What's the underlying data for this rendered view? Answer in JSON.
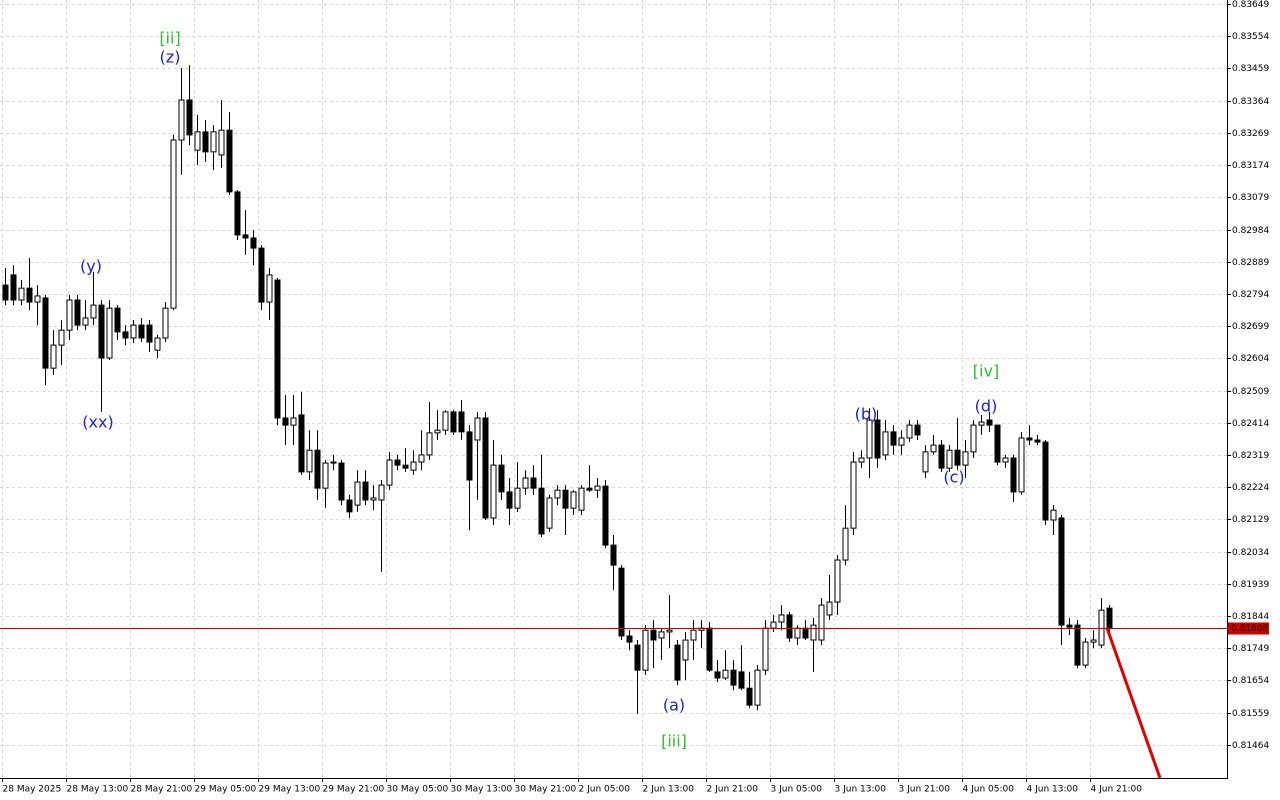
{
  "chart_data": {
    "type": "candlestick",
    "categories": [
      "28 May 2025",
      null,
      null,
      null,
      null,
      null,
      null,
      null,
      "28 May 13:00",
      null,
      null,
      null,
      null,
      null,
      null,
      null,
      "28 May 21:00",
      null,
      null,
      null,
      null,
      null,
      null,
      null,
      "29 May 05:00",
      null,
      null,
      null,
      null,
      null,
      null,
      null,
      "29 May 13:00",
      null,
      null,
      null,
      null,
      null,
      null,
      null,
      "29 May 21:00",
      null,
      null,
      null,
      null,
      null,
      null,
      null,
      "30 May 05:00",
      null,
      null,
      null,
      null,
      null,
      null,
      null,
      "30 May 13:00",
      null,
      null,
      null,
      null,
      null,
      null,
      null,
      "30 May 21:00",
      null,
      null,
      null,
      null,
      null,
      null,
      null,
      "2 Jun 05:00",
      null,
      null,
      null,
      null,
      null,
      null,
      null,
      "2 Jun 13:00",
      null,
      null,
      null,
      null,
      null,
      null,
      null,
      "2 Jun 21:00",
      null,
      null,
      null,
      null,
      null,
      null,
      null,
      "3 Jun 05:00",
      null,
      null,
      null,
      null,
      null,
      null,
      null,
      "3 Jun 13:00",
      null,
      null,
      null,
      null,
      null,
      null,
      null,
      "3 Jun 21:00",
      null,
      null,
      null,
      null,
      null,
      null,
      null,
      "4 Jun 05:00",
      null,
      null,
      null,
      null,
      null,
      null,
      null,
      "4 Jun 13:00",
      null,
      null,
      null,
      null,
      null,
      null,
      null,
      "4 Jun 21:00",
      null,
      null
    ],
    "open": [
      0.8282,
      0.8285,
      0.82776,
      0.82811,
      0.8277,
      0.82782,
      0.82575,
      0.82643,
      0.82687,
      0.82776,
      0.82702,
      0.82723,
      0.82761,
      0.82605,
      0.82752,
      0.82682,
      0.82664,
      0.82702,
      0.82702,
      0.82628,
      0.82664,
      0.82752,
      0.83248,
      0.83366,
      0.83218,
      0.83272,
      0.83213,
      0.83204,
      0.83277,
      0.83095,
      0.82968,
      0.82959,
      0.82929,
      0.8277,
      0.82835,
      0.82428,
      0.82407,
      0.82437,
      0.82269,
      0.82333,
      0.82221,
      0.82295,
      0.82295,
      0.82186,
      0.82171,
      0.82239,
      0.82186,
      0.82186,
      0.8223,
      0.82304,
      0.82289,
      0.82274,
      0.82298,
      0.82319,
      0.82384,
      0.82392,
      0.82446,
      0.82446,
      0.82387,
      0.82363,
      0.82428,
      0.82133,
      0.82289,
      0.8221,
      0.82162,
      0.82221,
      0.82251,
      0.82221,
      0.82103,
      0.82192,
      0.82215,
      0.82162,
      0.82156,
      0.82221,
      0.82215,
      0.82227,
      0.82053,
      0.81985,
      0.81785,
      0.81758,
      0.81684,
      0.81802,
      0.81779,
      0.81797,
      0.81758,
      0.81714,
      0.81773,
      0.81802,
      0.81808,
      0.81679,
      0.81661,
      0.81684,
      0.81679,
      0.81631,
      0.81581,
      0.81684,
      0.81808,
      0.81826,
      0.81847,
      0.81779,
      0.81808,
      0.81773,
      0.81773,
      0.81847,
      0.81885,
      0.82009,
      0.82103,
      0.82298,
      0.8231,
      0.82422,
      0.82319,
      0.82387,
      0.82348,
      0.82369,
      0.82407,
      0.82269,
      0.82328,
      0.82348,
      0.8228,
      0.82333,
      0.82289,
      0.82328,
      0.82407,
      0.82422,
      0.82407,
      0.82298,
      0.8231,
      0.8221,
      0.82369,
      0.82363,
      0.82357,
      0.82127,
      0.82133,
      0.81817,
      0.81817,
      0.81699,
      0.81767,
      0.81758,
      0.81867
    ],
    "high": [
      0.8287,
      0.82879,
      0.82835,
      0.829,
      0.8282,
      0.82791,
      0.82687,
      0.82717,
      0.82791,
      0.82791,
      0.82776,
      0.82859,
      0.82776,
      0.82776,
      0.82761,
      0.82702,
      0.82717,
      0.82723,
      0.82717,
      0.82673,
      0.8277,
      0.83263,
      0.8346,
      0.83469,
      0.83322,
      0.83307,
      0.83292,
      0.83366,
      0.83331,
      0.831,
      0.83041,
      0.82982,
      0.82938,
      0.8287,
      0.82841,
      0.82496,
      0.82496,
      0.82505,
      0.82392,
      0.82392,
      0.82304,
      0.82319,
      0.82304,
      0.82201,
      0.82274,
      0.82274,
      0.8223,
      0.82245,
      0.82328,
      0.82319,
      0.82339,
      0.82333,
      0.82392,
      0.82475,
      0.82451,
      0.82451,
      0.82451,
      0.82481,
      0.82407,
      0.82446,
      0.82446,
      0.82363,
      0.82319,
      0.82251,
      0.82298,
      0.82274,
      0.82289,
      0.82319,
      0.82201,
      0.8223,
      0.8223,
      0.82215,
      0.8223,
      0.82289,
      0.82251,
      0.82245,
      0.82083,
      0.81994,
      0.81802,
      0.81773,
      0.81817,
      0.81832,
      0.81808,
      0.81906,
      0.81773,
      0.81797,
      0.81832,
      0.81832,
      0.81826,
      0.81714,
      0.81743,
      0.81714,
      0.81758,
      0.81679,
      0.81699,
      0.81832,
      0.81847,
      0.81876,
      0.81856,
      0.81817,
      0.81832,
      0.81838,
      0.81897,
      0.81965,
      0.82024,
      0.82171,
      0.82328,
      0.82333,
      0.82457,
      0.82451,
      0.82422,
      0.82407,
      0.82392,
      0.82422,
      0.82422,
      0.82348,
      0.82378,
      0.82363,
      0.82348,
      0.82428,
      0.82363,
      0.82422,
      0.82437,
      0.82446,
      0.82407,
      0.82319,
      0.82319,
      0.82387,
      0.82407,
      0.82378,
      0.82363,
      0.82171,
      0.82142,
      0.81838,
      0.81832,
      0.81779,
      0.81802,
      0.81897,
      0.81876
    ],
    "low": [
      0.82761,
      0.82761,
      0.82761,
      0.82746,
      0.82702,
      0.82525,
      0.82555,
      0.82584,
      0.82658,
      0.82687,
      0.82687,
      0.82702,
      0.82446,
      0.82599,
      0.82658,
      0.82643,
      0.82649,
      0.82652,
      0.82623,
      0.82605,
      0.82652,
      0.82746,
      0.83145,
      0.83233,
      0.83174,
      0.83183,
      0.83159,
      0.83165,
      0.83086,
      0.82953,
      0.82909,
      0.82879,
      0.82746,
      0.82717,
      0.82407,
      0.82348,
      0.82348,
      0.8226,
      0.82245,
      0.82186,
      0.82162,
      0.82274,
      0.82171,
      0.82133,
      0.82151,
      0.82171,
      0.82156,
      0.81974,
      0.82215,
      0.82274,
      0.82269,
      0.8226,
      0.82274,
      0.82304,
      0.82363,
      0.82378,
      0.82378,
      0.82363,
      0.82097,
      0.82186,
      0.82127,
      0.82112,
      0.82186,
      0.82112,
      0.82151,
      0.82201,
      0.82201,
      0.82077,
      0.82092,
      0.82171,
      0.82083,
      0.82142,
      0.82142,
      0.8221,
      0.82192,
      0.82044,
      0.8192,
      0.81773,
      0.81743,
      0.81555,
      0.8167,
      0.8169,
      0.81714,
      0.81749,
      0.8164,
      0.81655,
      0.81714,
      0.81749,
      0.81679,
      0.81649,
      0.81655,
      0.81625,
      0.81625,
      0.81572,
      0.81566,
      0.8167,
      0.81797,
      0.81802,
      0.81767,
      0.81758,
      0.81773,
      0.81679,
      0.81758,
      0.81832,
      0.81847,
      0.81994,
      0.82083,
      0.8228,
      0.82251,
      0.8228,
      0.82304,
      0.82319,
      0.82319,
      0.82357,
      0.82363,
      0.82251,
      0.82319,
      0.82269,
      0.82269,
      0.82274,
      0.82251,
      0.8231,
      0.82378,
      0.82387,
      0.82289,
      0.8228,
      0.8218,
      0.82201,
      0.82348,
      0.82348,
      0.82112,
      0.82083,
      0.81758,
      0.81788,
      0.8169,
      0.8169,
      0.81749,
      0.81749,
      0.81797
    ],
    "close": [
      0.82776,
      0.82776,
      0.82811,
      0.8277,
      0.82788,
      0.82575,
      0.82643,
      0.82687,
      0.82776,
      0.82702,
      0.82723,
      0.82761,
      0.82605,
      0.82752,
      0.82682,
      0.82664,
      0.82702,
      0.82664,
      0.82652,
      0.82664,
      0.82752,
      0.83248,
      0.83366,
      0.83263,
      0.83272,
      0.83213,
      0.83272,
      0.83277,
      0.83095,
      0.82968,
      0.82959,
      0.82929,
      0.8277,
      0.8285,
      0.82428,
      0.82407,
      0.82428,
      0.82269,
      0.82333,
      0.82221,
      0.82295,
      0.82298,
      0.82186,
      0.82151,
      0.82239,
      0.82186,
      0.82192,
      0.8223,
      0.82304,
      0.82289,
      0.8228,
      0.82298,
      0.82319,
      0.82384,
      0.82392,
      0.82446,
      0.82387,
      0.82387,
      0.82245,
      0.82428,
      0.82133,
      0.82289,
      0.8221,
      0.82162,
      0.82221,
      0.82251,
      0.82221,
      0.82086,
      0.82192,
      0.82215,
      0.82162,
      0.8221,
      0.82221,
      0.82215,
      0.82227,
      0.82053,
      0.81994,
      0.81785,
      0.81767,
      0.81684,
      0.81802,
      0.81773,
      0.81797,
      0.81802,
      0.81655,
      0.81773,
      0.81802,
      0.81808,
      0.81684,
      0.81661,
      0.81684,
      0.8164,
      0.81631,
      0.81581,
      0.81684,
      0.81808,
      0.81826,
      0.81847,
      0.81779,
      0.81808,
      0.81779,
      0.81817,
      0.81876,
      0.81885,
      0.82009,
      0.82103,
      0.82298,
      0.8231,
      0.82422,
      0.8231,
      0.82387,
      0.82348,
      0.82369,
      0.82407,
      0.82378,
      0.82328,
      0.82348,
      0.8228,
      0.82333,
      0.82289,
      0.82328,
      0.82407,
      0.82416,
      0.82407,
      0.82298,
      0.8231,
      0.8221,
      0.82369,
      0.82363,
      0.82357,
      0.82127,
      0.82156,
      0.81817,
      0.81811,
      0.81699,
      0.81767,
      0.81773,
      0.81861,
      0.81808
    ],
    "up_color": "#ffffff",
    "down_color": "#000000",
    "ylim": [
      0.81366,
      0.83661
    ],
    "yticks": [
      0.83649,
      0.83554,
      0.83459,
      0.83364,
      0.83269,
      0.83174,
      0.83079,
      0.82984,
      0.82889,
      0.82794,
      0.82699,
      0.82604,
      0.82509,
      0.82414,
      0.82319,
      0.82224,
      0.82129,
      0.82034,
      0.81939,
      0.81844,
      0.81749,
      0.81654,
      0.81559,
      0.81464
    ],
    "grid": true,
    "current_price": 0.81808,
    "current_price_color": "#cc0000",
    "annotations": [
      {
        "text": "[ii]",
        "color": "#33bb33"
      },
      {
        "text": "(z)",
        "color": "#2222cc"
      },
      {
        "text": "(y)",
        "color": "#2222cc"
      },
      {
        "text": "(xx)",
        "color": "#2222cc"
      },
      {
        "text": "(a)",
        "color": "#2222cc"
      },
      {
        "text": "[iii]",
        "color": "#33bb33"
      },
      {
        "text": "(b)",
        "color": "#2222cc"
      },
      {
        "text": "(c)",
        "color": "#2222cc"
      },
      {
        "text": "[iv]",
        "color": "#33bb33"
      },
      {
        "text": "(d)",
        "color": "#2222cc"
      }
    ]
  }
}
